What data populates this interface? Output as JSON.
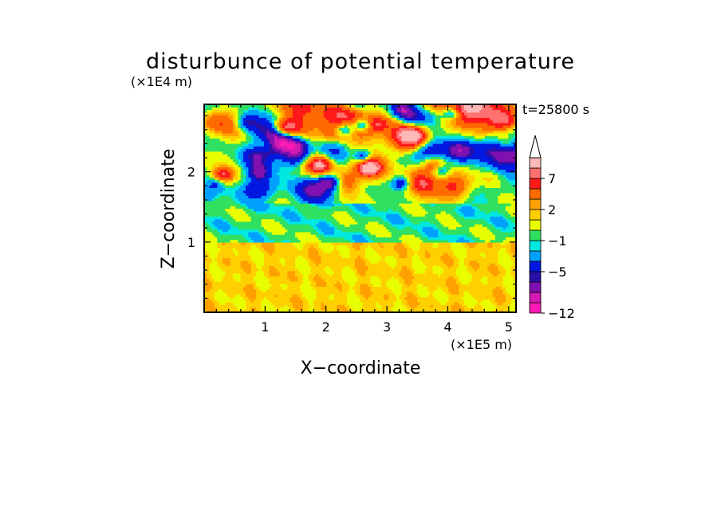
{
  "chart_data": {
    "type": "heatmap",
    "title": "disturbunce of potential temperature",
    "time_label": "t=25800 s",
    "xlabel": "X−coordinate",
    "ylabel": "Z−coordinate",
    "x_unit": "(×1E5 m)",
    "y_unit": "(×1E4 m)",
    "xlim": [
      0,
      5.12
    ],
    "ylim": [
      0,
      2.96
    ],
    "x_ticks": [
      "1",
      "2",
      "3",
      "4",
      "5"
    ],
    "y_ticks": [
      "1",
      "2"
    ],
    "colorbar": {
      "tick_labels": [
        "7",
        "2",
        "−1",
        "−5",
        "−12"
      ],
      "colors": [
        "#ff1ab5",
        "#d11ab0",
        "#8010b0",
        "#2a10a8",
        "#0018e0",
        "#00a0ff",
        "#00e8e0",
        "#30e060",
        "#e8ff00",
        "#ffd000",
        "#ffa000",
        "#ff6a00",
        "#ff1a1a",
        "#ff7070",
        "#ffb8b8"
      ],
      "extend_top": true
    },
    "regions": [
      {
        "z_range": [
          0.0,
          1.0
        ],
        "description": "mostly yellow/orange, values about +1 to +3"
      },
      {
        "z_range": [
          1.0,
          1.6
        ],
        "description": "green/cyan, values about -1 to 0"
      },
      {
        "z_range": [
          1.6,
          2.96
        ],
        "description": "alternating blue and orange/red cells, values about -6 to +8"
      }
    ]
  }
}
